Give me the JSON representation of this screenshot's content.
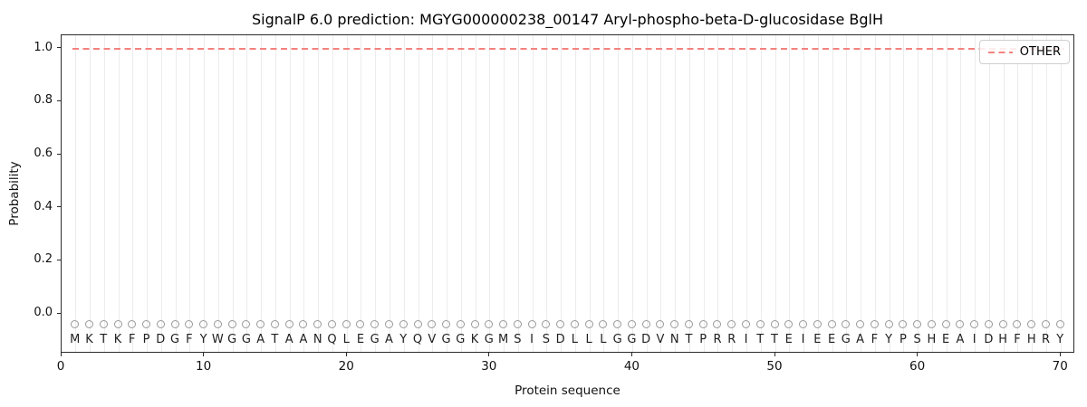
{
  "chart_data": {
    "type": "line",
    "title": "SignalP 6.0 prediction: MGYG000000238_00147 Aryl-phospho-beta-D-glucosidase BglH",
    "xlabel": "Protein sequence",
    "ylabel": "Probability",
    "xlim": [
      0,
      71
    ],
    "ylim": [
      -0.15,
      1.05
    ],
    "xticks": [
      0,
      10,
      20,
      30,
      40,
      50,
      60,
      70
    ],
    "yticks": [
      0.0,
      0.2,
      0.4,
      0.6,
      0.8,
      1.0
    ],
    "grid": "vertical gridline at every residue position, light gray",
    "legend": {
      "position": "upper right",
      "entries": [
        {
          "label": "OTHER",
          "style": "dashed",
          "color": "#f4827e"
        }
      ]
    },
    "series": [
      {
        "name": "OTHER",
        "style": "dashed",
        "color": "#f4827e",
        "x_start": 1,
        "x_end": 70,
        "constant_y": 1.0
      }
    ],
    "sequence": "MKTKFPDGFYWGGATAANQLEGAYQVGGKGMSISDLLLGGDVNTPRRITTEIEEGAFYPSHEAIDHFHRY",
    "sequence_marker": {
      "shape": "open-circle",
      "color": "#999999",
      "y": -0.042
    },
    "sequence_letter_y": -0.1,
    "colors": {
      "grid": "#ececec",
      "spine": "#2b2b2b",
      "dashed_line": "#f4827e",
      "marker": "#999999",
      "text": "#1a1a1a"
    }
  }
}
